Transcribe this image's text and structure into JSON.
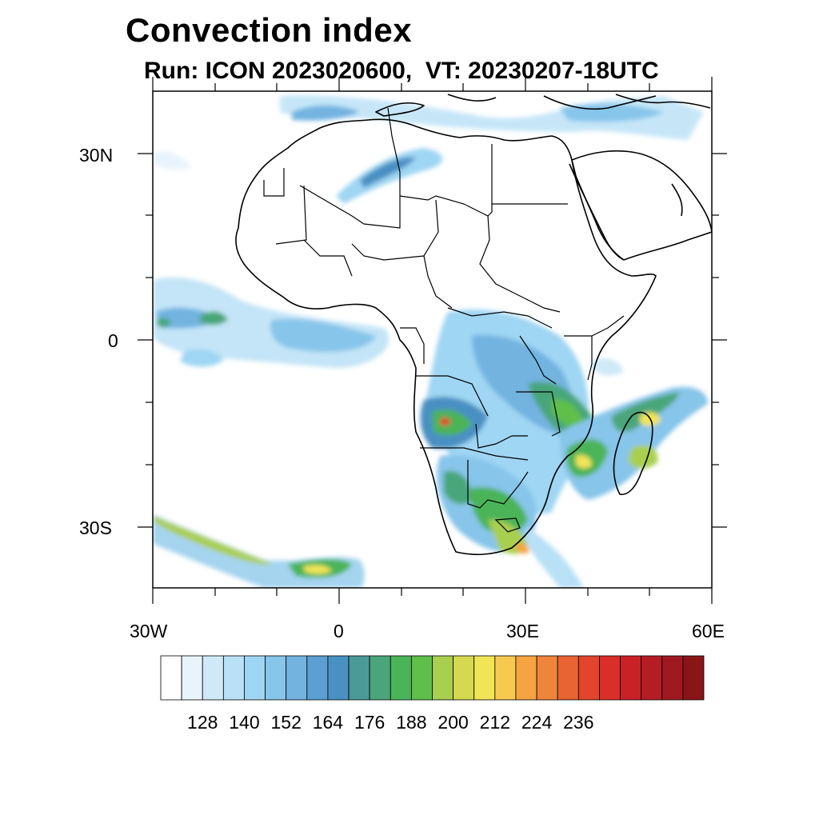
{
  "title": "Convection index",
  "subtitle": "Run: ICON 2023020600,  VT: 20230207-18UTC",
  "lat_labels": [
    "30N",
    "0",
    "30S"
  ],
  "lon_labels": [
    "30W",
    "0",
    "30E",
    "60E"
  ],
  "colorbar": {
    "colors": [
      "#ffffff",
      "#e8f4fb",
      "#cfe9f8",
      "#b8e0f6",
      "#9fd6f3",
      "#87c5ea",
      "#72b3e0",
      "#5b9fd3",
      "#4a90c2",
      "#4a9a98",
      "#4aa67a",
      "#4cb458",
      "#5fbf4a",
      "#a9cf50",
      "#d4d94f",
      "#f1e457",
      "#f7c94f",
      "#f5a443",
      "#ef853a",
      "#e86432",
      "#e2452b",
      "#d92f28",
      "#c92226",
      "#b51d25",
      "#9e1a20",
      "#8a1516"
    ],
    "tick_labels": [
      "128",
      "140",
      "152",
      "164",
      "176",
      "188",
      "200",
      "212",
      "224",
      "236"
    ]
  },
  "map_regions": {
    "north_africa": "land",
    "central_africa": "land",
    "southern_africa": "land",
    "madagascar": "land",
    "arabian_peninsula": "land",
    "europe_south": "land"
  }
}
